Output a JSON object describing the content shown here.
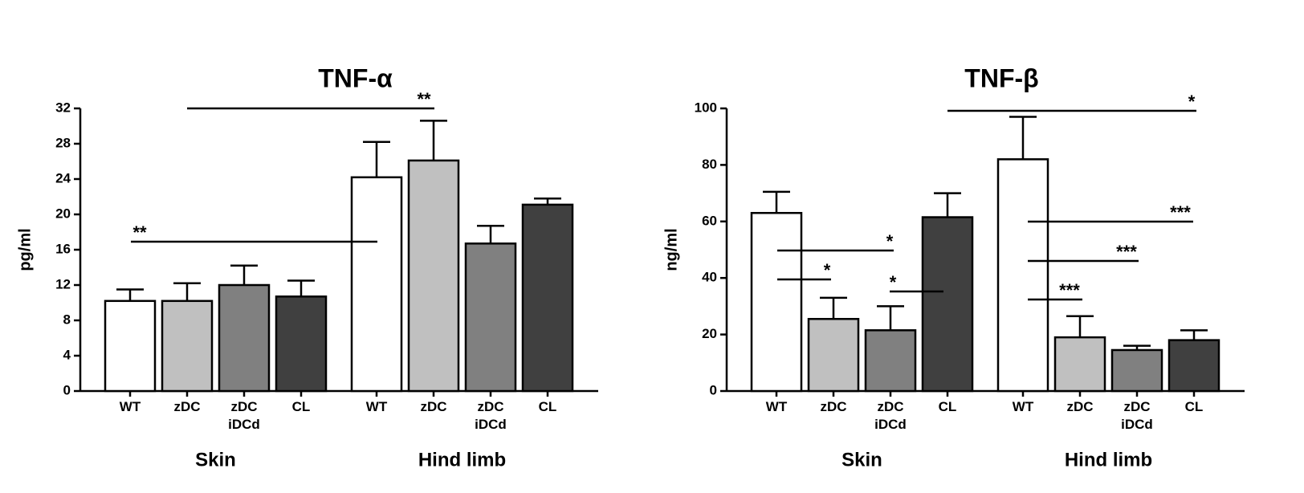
{
  "chart_data": [
    {
      "type": "bar",
      "title": "TNF-α",
      "y_label": "pg/ml",
      "categories": [
        "WT",
        "zDC",
        "zDC\niDCd",
        "CL",
        "WT",
        "zDC",
        "zDC\niDCd",
        "CL"
      ],
      "groups": [
        "Skin",
        "Hind limb"
      ],
      "values": [
        10.2,
        10.2,
        12.0,
        10.7,
        24.2,
        26.1,
        16.7,
        21.1
      ],
      "errors": [
        1.3,
        2.0,
        2.2,
        1.8,
        4.0,
        4.5,
        2.0,
        0.7
      ],
      "colors": [
        "#ffffff",
        "#c0c0c0",
        "#808080",
        "#404040",
        "#ffffff",
        "#c0c0c0",
        "#808080",
        "#404040"
      ],
      "ylim": [
        0,
        32
      ],
      "yticks": [
        0,
        4,
        8,
        12,
        16,
        20,
        24,
        28,
        32
      ],
      "annotations": [
        "**",
        "**"
      ]
    },
    {
      "type": "bar",
      "title": "TNF-β",
      "y_label": "ng/ml",
      "categories": [
        "WT",
        "zDC",
        "zDC\niDCd",
        "CL",
        "WT",
        "zDC",
        "zDC\niDCd",
        "CL"
      ],
      "groups": [
        "Skin",
        "Hind limb"
      ],
      "values": [
        63,
        25.5,
        21.5,
        61.5,
        82,
        19,
        14.5,
        18
      ],
      "errors": [
        7.5,
        7.5,
        8.5,
        8.5,
        15,
        7.5,
        1.5,
        3.5
      ],
      "colors": [
        "#ffffff",
        "#c0c0c0",
        "#808080",
        "#404040",
        "#ffffff",
        "#c0c0c0",
        "#808080",
        "#404040"
      ],
      "ylim": [
        0,
        100
      ],
      "yticks": [
        0,
        20,
        40,
        60,
        80,
        100
      ],
      "annotations": [
        "*",
        "*",
        "*",
        "*",
        "***",
        "***",
        "***"
      ]
    }
  ]
}
